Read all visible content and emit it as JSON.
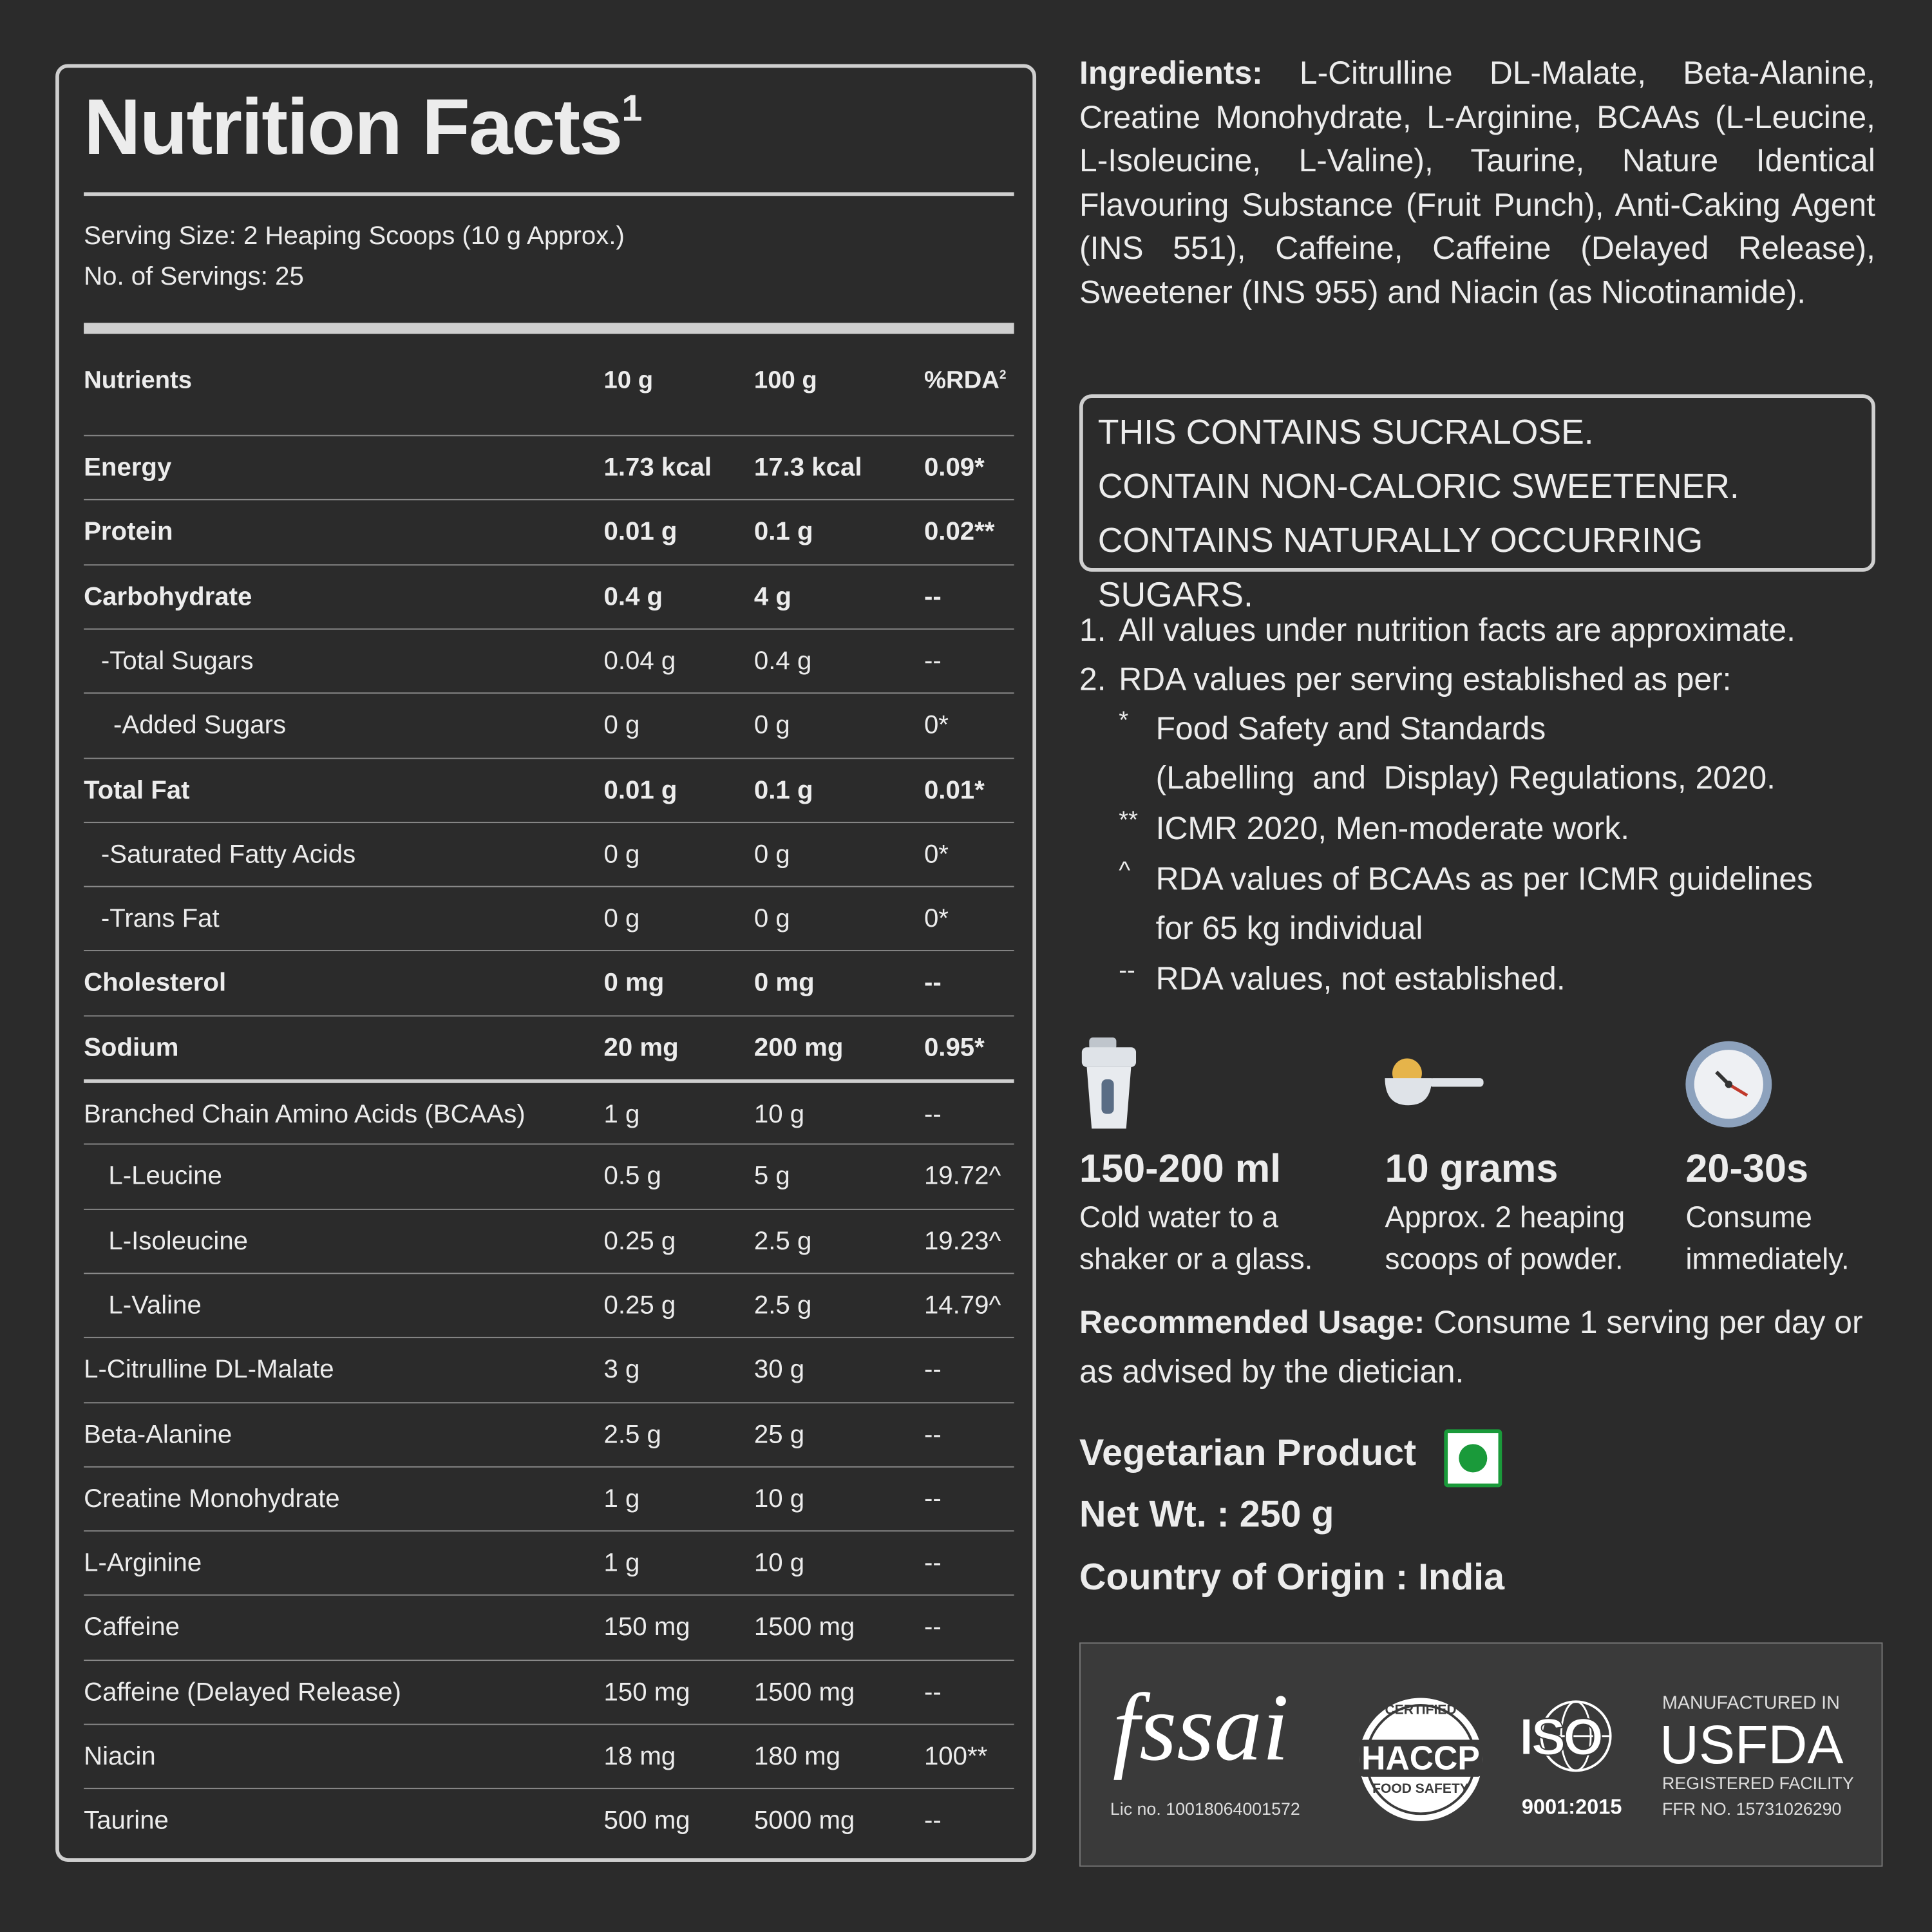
{
  "nutrition_facts": {
    "title": "Nutrition Facts",
    "title_sup": "1",
    "serving_size": "Serving Size: 2 Heaping Scoops (10 g Approx.)",
    "servings": "No. of Servings: 25",
    "header": [
      "Nutrients",
      "10 g",
      "100 g",
      "%RDA"
    ],
    "header_sup": "2",
    "rows": [
      [
        "Energy",
        "1.73 kcal",
        "17.3 kcal",
        "0.09*"
      ],
      [
        "Protein",
        "0.01 g",
        "0.1 g",
        "0.02**"
      ],
      [
        "Carbohydrate",
        "0.4 g",
        "4 g",
        "--"
      ],
      [
        "-Total Sugars",
        "0.04 g",
        "0.4 g",
        "--"
      ],
      [
        "-Added Sugars",
        "0 g",
        "0 g",
        "0*"
      ],
      [
        "Total Fat",
        "0.01 g",
        "0.1 g",
        "0.01*"
      ],
      [
        "-Saturated Fatty Acids",
        "0 g",
        "0 g",
        "0*"
      ],
      [
        "-Trans Fat",
        "0 g",
        "0 g",
        "0*"
      ],
      [
        "Cholesterol",
        "0 mg",
        "0 mg",
        "--"
      ],
      [
        "Sodium",
        "20 mg",
        "200 mg",
        "0.95*"
      ],
      [
        "Branched Chain Amino Acids (BCAAs)",
        "1 g",
        "10 g",
        "--"
      ],
      [
        "L-Leucine",
        "0.5 g",
        "5 g",
        "19.72^"
      ],
      [
        "L-Isoleucine",
        "0.25 g",
        "2.5 g",
        "19.23^"
      ],
      [
        "L-Valine",
        "0.25 g",
        "2.5 g",
        "14.79^"
      ],
      [
        "L-Citrulline DL-Malate",
        "3 g",
        "30 g",
        "--"
      ],
      [
        "Beta-Alanine",
        "2.5 g",
        "25 g",
        "--"
      ],
      [
        "Creatine Monohydrate",
        "1 g",
        "10 g",
        "--"
      ],
      [
        "L-Arginine",
        "1 g",
        "10 g",
        "--"
      ],
      [
        "Caffeine",
        "150 mg",
        "1500 mg",
        "--"
      ],
      [
        "Caffeine (Delayed Release)",
        "150 mg",
        "1500 mg",
        "--"
      ],
      [
        "Niacin",
        "18 mg",
        "180 mg",
        "100**"
      ],
      [
        "Taurine",
        "500 mg",
        "5000 mg",
        "--"
      ]
    ]
  },
  "ingredients": {
    "label": "Ingredients:",
    "text": "L-Citrulline DL-Malate, Beta-Alanine, Creatine Monohydrate, L-Arginine, BCAAs (L-Leucine, L-Isoleucine, L-Valine), Taurine, Nature Identical Flavouring Substance (Fruit Punch), Anti-Caking Agent (INS 551), Caffeine, Caffeine (Delayed Release), Sweetener (INS 955) and Niacin (as Nicotinamide)."
  },
  "warnings": [
    "THIS CONTAINS SUCRALOSE.",
    "CONTAIN NON-CALORIC SWEETENER.",
    "CONTAINS NATURALLY OCCURRING SUGARS."
  ],
  "footnotes": [
    {
      "number": "1.",
      "text": "All values under nutrition facts are approximate."
    },
    {
      "number": "2.",
      "text": "RDA values per serving established as per:",
      "items": [
        {
          "marker": "*",
          "lines": [
            "Food Safety and Standards",
            "(Labelling  and  Display) Regulations, 2020."
          ]
        },
        {
          "marker": "**",
          "lines": [
            "ICMR 2020, Men-moderate work."
          ]
        },
        {
          "marker": "^",
          "lines": [
            "RDA values of BCAAs as per ICMR guidelines",
            "for 65 kg individual"
          ]
        },
        {
          "marker": "--",
          "lines": [
            "RDA values, not established."
          ]
        }
      ]
    }
  ],
  "usage_steps": [
    {
      "amount": "150-200 ml",
      "lines": [
        "Cold water to a",
        "shaker or a glass."
      ]
    },
    {
      "amount": "10 grams",
      "lines": [
        "Approx. 2 heaping",
        "scoops of powder."
      ]
    },
    {
      "amount": "20-30s",
      "lines": [
        "Consume",
        "immediately."
      ]
    }
  ],
  "recommended_usage": {
    "label": "Recommended Usage:",
    "text": "Consume 1 serving per day or as advised by the dietician."
  },
  "vegetarian": "Vegetarian Product",
  "net_wt": "Net Wt. : 250 g",
  "origin": "Country of Origin : India",
  "certifications": {
    "fssai": "fssai",
    "fssai_lic": "Lic no. 10018064001572",
    "haccp_top": "CERTIFIED",
    "haccp": "HACCP",
    "haccp_bottom": "FOOD SAFETY",
    "iso": "ISO",
    "iso_number": "9001:2015",
    "usfda_top": "MANUFACTURED IN",
    "usfda": "USFDA",
    "usfda_sub": "REGISTERED FACILITY",
    "usfda_ffr": "FFR NO. 15731026290"
  }
}
